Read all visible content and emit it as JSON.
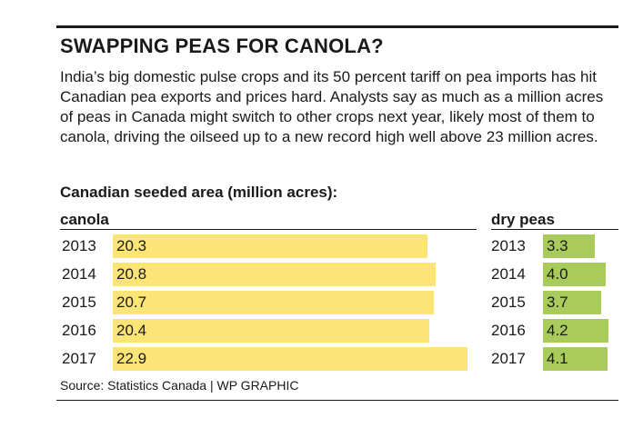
{
  "title": "SWAPPING PEAS FOR CANOLA?",
  "intro": "India’s big domestic pulse crops and its 50 percent tariff on pea imports has hit Canadian pea exports and prices hard. Analysts say as much as a million acres of peas in Canada might switch to other crops next year, likely most of them to canola, driving the oilseed up to a new record high well above 23 million acres.",
  "source": "Source: Statistics Canada  |  WP GRAPHIC",
  "colors": {
    "canola_bar": "#fce477",
    "peas_bar": "#a9cb5b"
  },
  "chart_data": {
    "type": "bar",
    "orientation": "horizontal",
    "title": "Canadian seeded area (million acres):",
    "categories": [
      "2013",
      "2014",
      "2015",
      "2016",
      "2017"
    ],
    "series": [
      {
        "name": "canola",
        "values": [
          "20.3",
          "20.8",
          "20.7",
          "20.4",
          "22.9"
        ]
      },
      {
        "name": "dry peas",
        "values": [
          "3.3",
          "4.0",
          "3.7",
          "4.2",
          "4.1"
        ]
      }
    ]
  }
}
